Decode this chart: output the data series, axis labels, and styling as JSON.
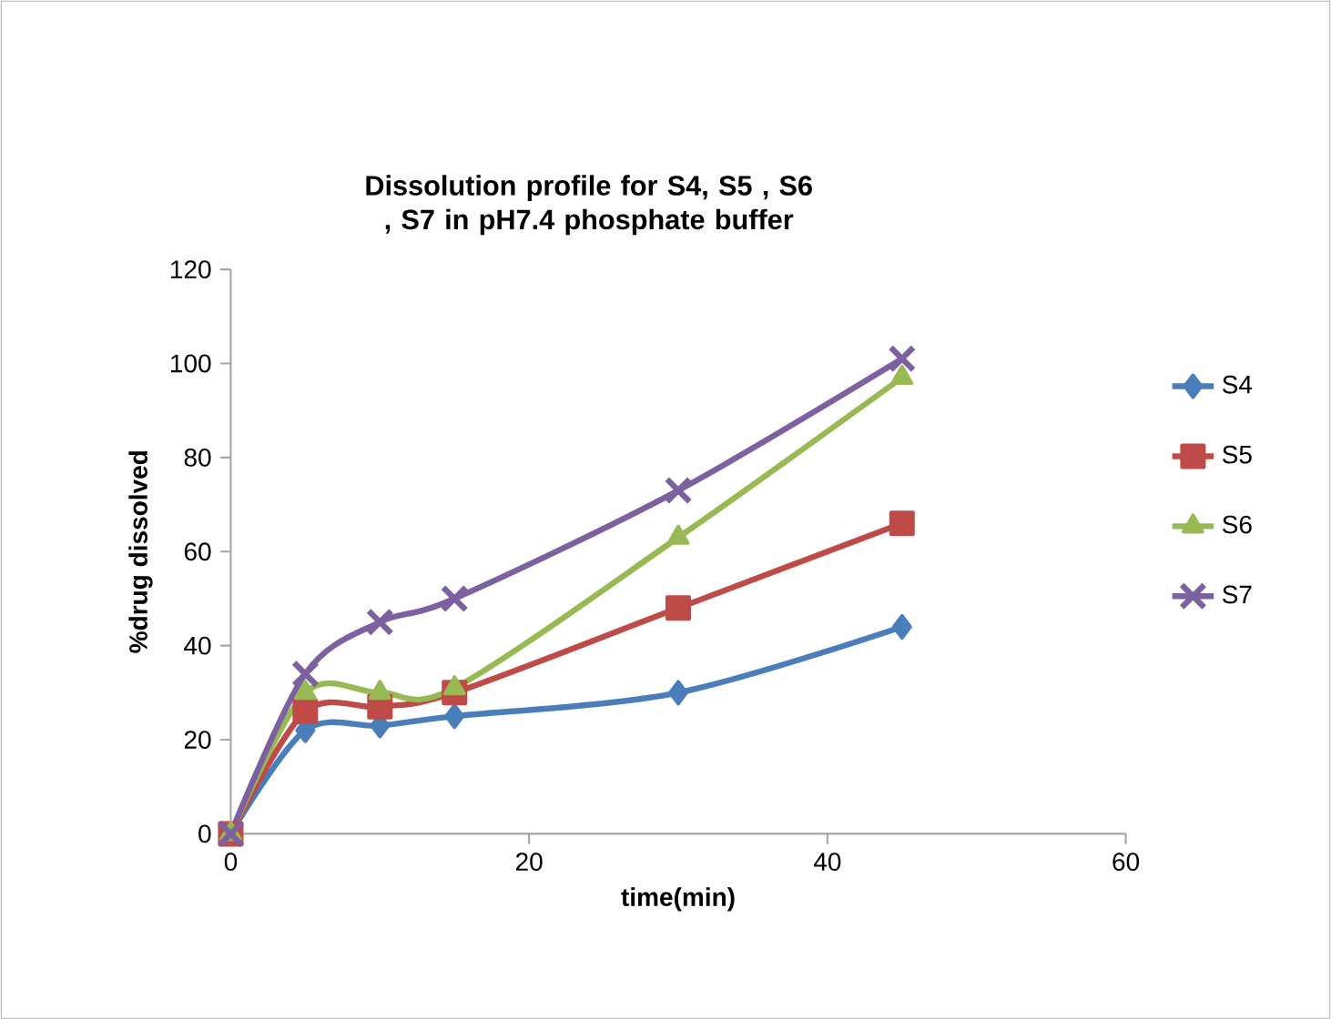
{
  "chart_data": {
    "type": "line",
    "title": "Dissolution profile for S4, S5 , S6 , S7 in pH7.4 phosphate buffer",
    "xlabel": "time(min)",
    "ylabel": "%drug dissolved",
    "x": [
      0,
      5,
      10,
      15,
      30,
      45
    ],
    "series": [
      {
        "name": "S4",
        "color": "#4a7ebb",
        "marker": "diamond",
        "values": [
          0,
          22,
          23,
          25,
          30,
          44
        ]
      },
      {
        "name": "S5",
        "color": "#be4b48",
        "marker": "square",
        "values": [
          0,
          26,
          27,
          30,
          48,
          66
        ]
      },
      {
        "name": "S6",
        "color": "#98b954",
        "marker": "triangle",
        "values": [
          0,
          30,
          30,
          31,
          63,
          97
        ]
      },
      {
        "name": "S7",
        "color": "#7d60a0",
        "marker": "cross",
        "values": [
          0,
          34,
          45,
          50,
          73,
          101
        ]
      }
    ],
    "xlim": [
      0,
      60
    ],
    "xticks": [
      0,
      20,
      40,
      60
    ],
    "ylim": [
      0,
      120
    ],
    "yticks": [
      0,
      20,
      40,
      60,
      80,
      100,
      120
    ],
    "grid": false,
    "legend": "right",
    "line_style": "solid"
  }
}
